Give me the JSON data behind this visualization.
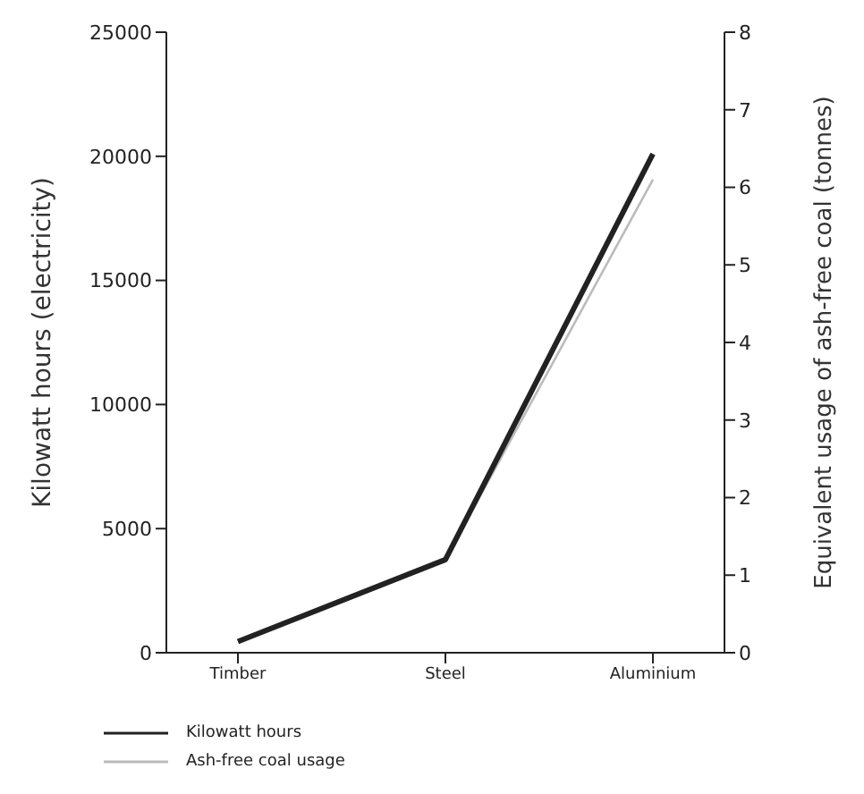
{
  "chart_data": {
    "type": "line",
    "categories": [
      "Timber",
      "Steel",
      "Aluminium"
    ],
    "series": [
      {
        "name": "Kilowatt hours",
        "color": "#222222",
        "values": [
          450,
          3750,
          20100
        ]
      },
      {
        "name": "Ash-free coal usage",
        "color": "#bbbbbb",
        "values": [
          0.15,
          1.2,
          6.1
        ],
        "axis": "y2"
      }
    ],
    "ylabel": "Kilowatt hours (electricity)",
    "y2label": "Equivalent usage of ash-free coal (tonnes)",
    "ylim": [
      0,
      25000
    ],
    "yticks": [
      0,
      5000,
      10000,
      15000,
      20000,
      25000
    ],
    "y2lim": [
      0,
      8
    ],
    "y2ticks": [
      0,
      1,
      2,
      3,
      4,
      5,
      6,
      7,
      8
    ],
    "grid": false,
    "legend": "bottom",
    "marker": "none",
    "line_style": "solid"
  }
}
